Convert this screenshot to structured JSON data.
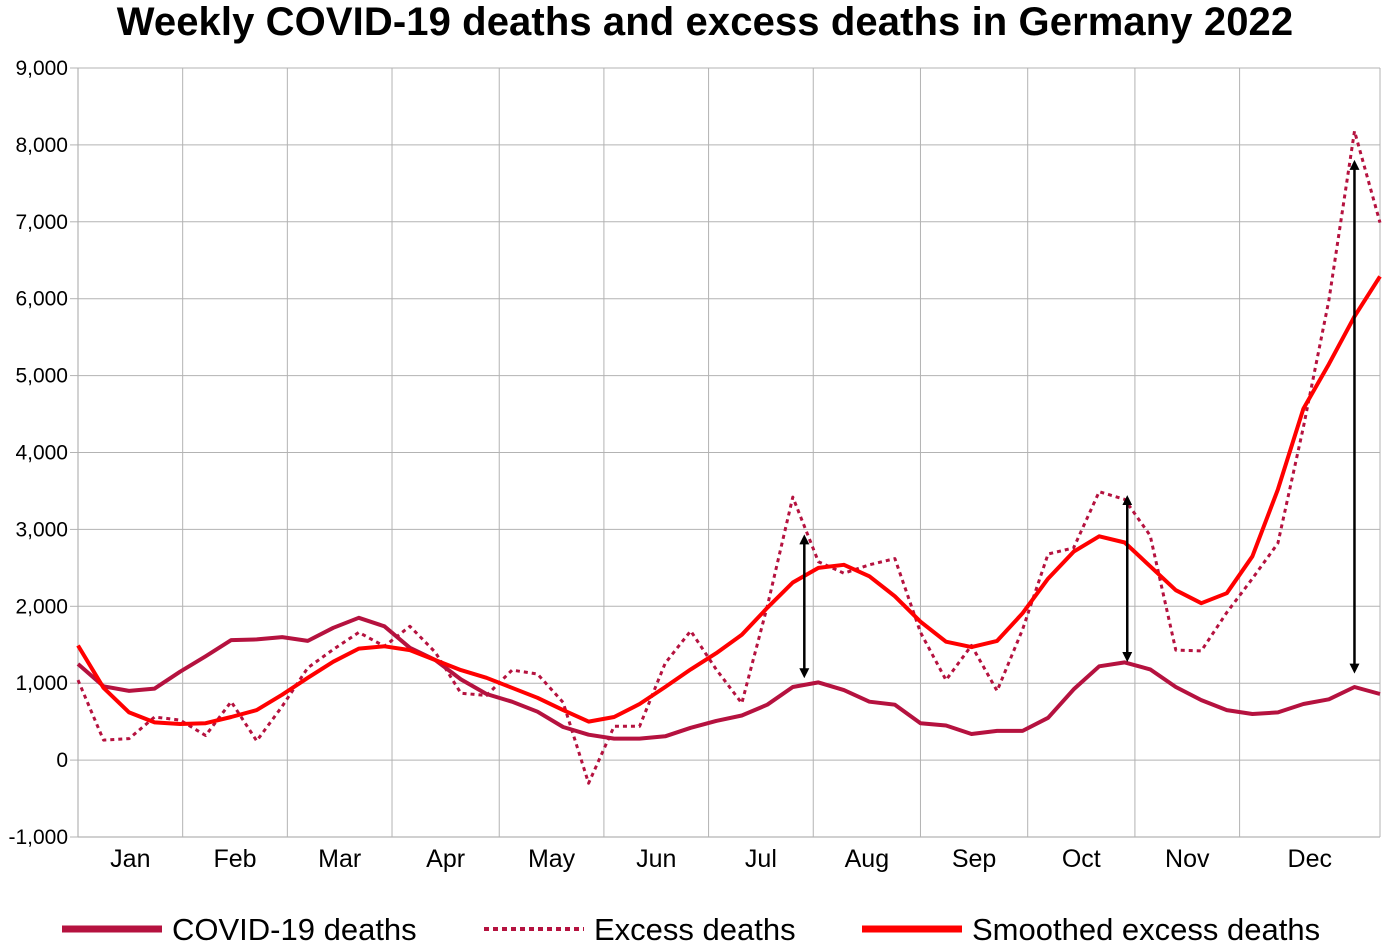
{
  "chart_data": {
    "type": "line",
    "title": "Weekly COVID-19 deaths and excess deaths in Germany 2022",
    "xlabel": "",
    "ylabel": "",
    "ylim": [
      -1000,
      9000
    ],
    "yticks": [
      -1000,
      0,
      1000,
      2000,
      3000,
      4000,
      5000,
      6000,
      7000,
      8000,
      9000
    ],
    "ytick_labels": [
      "-1,000",
      "0",
      "1,000",
      "2,000",
      "3,000",
      "4,000",
      "5,000",
      "6,000",
      "7,000",
      "8,000",
      "9,000"
    ],
    "x_unit": "week",
    "xlim": [
      1,
      52
    ],
    "categories": [
      "Jan",
      "Feb",
      "Mar",
      "Apr",
      "May",
      "Jun",
      "Jul",
      "Aug",
      "Sep",
      "Oct",
      "Nov",
      "Dec"
    ],
    "month_bounds": [
      1,
      5.1,
      9.2,
      13.3,
      17.5,
      21.6,
      25.7,
      29.8,
      34.0,
      38.2,
      42.4,
      46.5,
      52
    ],
    "grid": true,
    "legend": "bottom",
    "series": [
      {
        "name": "COVID-19 deaths",
        "color": "#b5123f",
        "style": "solid",
        "x": [
          1,
          2,
          3,
          4,
          5,
          6,
          7,
          8,
          9,
          10,
          11,
          12,
          13,
          14,
          15,
          16,
          17,
          18,
          19,
          20,
          21,
          22,
          23,
          24,
          25,
          26,
          27,
          28,
          29,
          30,
          31,
          32,
          33,
          34,
          35,
          36,
          37,
          38,
          39,
          40,
          41,
          42,
          43,
          44,
          45,
          46,
          47,
          48,
          49,
          50,
          51,
          52
        ],
        "values": [
          1250,
          960,
          900,
          930,
          1150,
          1350,
          1560,
          1570,
          1600,
          1550,
          1720,
          1850,
          1740,
          1460,
          1300,
          1050,
          860,
          760,
          630,
          430,
          330,
          280,
          280,
          310,
          420,
          510,
          580,
          720,
          950,
          1010,
          910,
          760,
          720,
          480,
          450,
          340,
          380,
          380,
          550,
          920,
          1220,
          1270,
          1180,
          950,
          780,
          650,
          600,
          620,
          730,
          790,
          950,
          860
        ]
      },
      {
        "name": "Excess deaths",
        "color": "#b5123f",
        "style": "dotted",
        "x": [
          1,
          2,
          3,
          4,
          5,
          6,
          7,
          8,
          9,
          10,
          11,
          12,
          13,
          14,
          15,
          16,
          17,
          18,
          19,
          20,
          21,
          22,
          23,
          24,
          25,
          26,
          27,
          28,
          29,
          30,
          31,
          32,
          33,
          34,
          35,
          36,
          37,
          38,
          39,
          40,
          41,
          42,
          43,
          44,
          45,
          46,
          47,
          48,
          49,
          50,
          51,
          52
        ],
        "values": [
          1040,
          260,
          280,
          560,
          520,
          320,
          760,
          250,
          700,
          1200,
          1440,
          1660,
          1480,
          1740,
          1400,
          870,
          840,
          1170,
          1120,
          750,
          -300,
          440,
          440,
          1260,
          1680,
          1180,
          740,
          2000,
          3420,
          2580,
          2430,
          2540,
          2620,
          1660,
          1040,
          1490,
          900,
          1700,
          2680,
          2760,
          3490,
          3390,
          2920,
          1430,
          1420,
          1920,
          2360,
          2820,
          4330,
          5980,
          8180,
          6990
        ]
      },
      {
        "name": "Smoothed excess deaths",
        "color": "#ff0000",
        "style": "solid",
        "x": [
          1,
          2,
          3,
          4,
          5,
          6,
          7,
          8,
          9,
          10,
          11,
          12,
          13,
          14,
          15,
          16,
          17,
          18,
          19,
          20,
          21,
          22,
          23,
          24,
          25,
          26,
          27,
          28,
          29,
          30,
          31,
          32,
          33,
          34,
          35,
          36,
          37,
          38,
          39,
          40,
          41,
          42,
          43,
          44,
          45,
          46,
          47,
          48,
          49,
          50,
          51,
          52
        ],
        "values": [
          1490,
          940,
          620,
          490,
          470,
          480,
          560,
          650,
          850,
          1070,
          1280,
          1450,
          1480,
          1430,
          1300,
          1170,
          1070,
          940,
          810,
          650,
          500,
          560,
          730,
          950,
          1180,
          1390,
          1630,
          1980,
          2310,
          2500,
          2540,
          2390,
          2130,
          1800,
          1540,
          1470,
          1550,
          1910,
          2360,
          2710,
          2910,
          2830,
          2520,
          2210,
          2040,
          2170,
          2650,
          3520,
          4570,
          5150,
          5770,
          6290
        ]
      }
    ],
    "annotations": [
      {
        "type": "double-arrow",
        "x": 29.45,
        "y_from": 1130,
        "y_to": 2870
      },
      {
        "type": "double-arrow",
        "x": 42.1,
        "y_from": 1340,
        "y_to": 3380
      },
      {
        "type": "double-arrow",
        "x": 51.0,
        "y_from": 1190,
        "y_to": 7740
      }
    ]
  }
}
